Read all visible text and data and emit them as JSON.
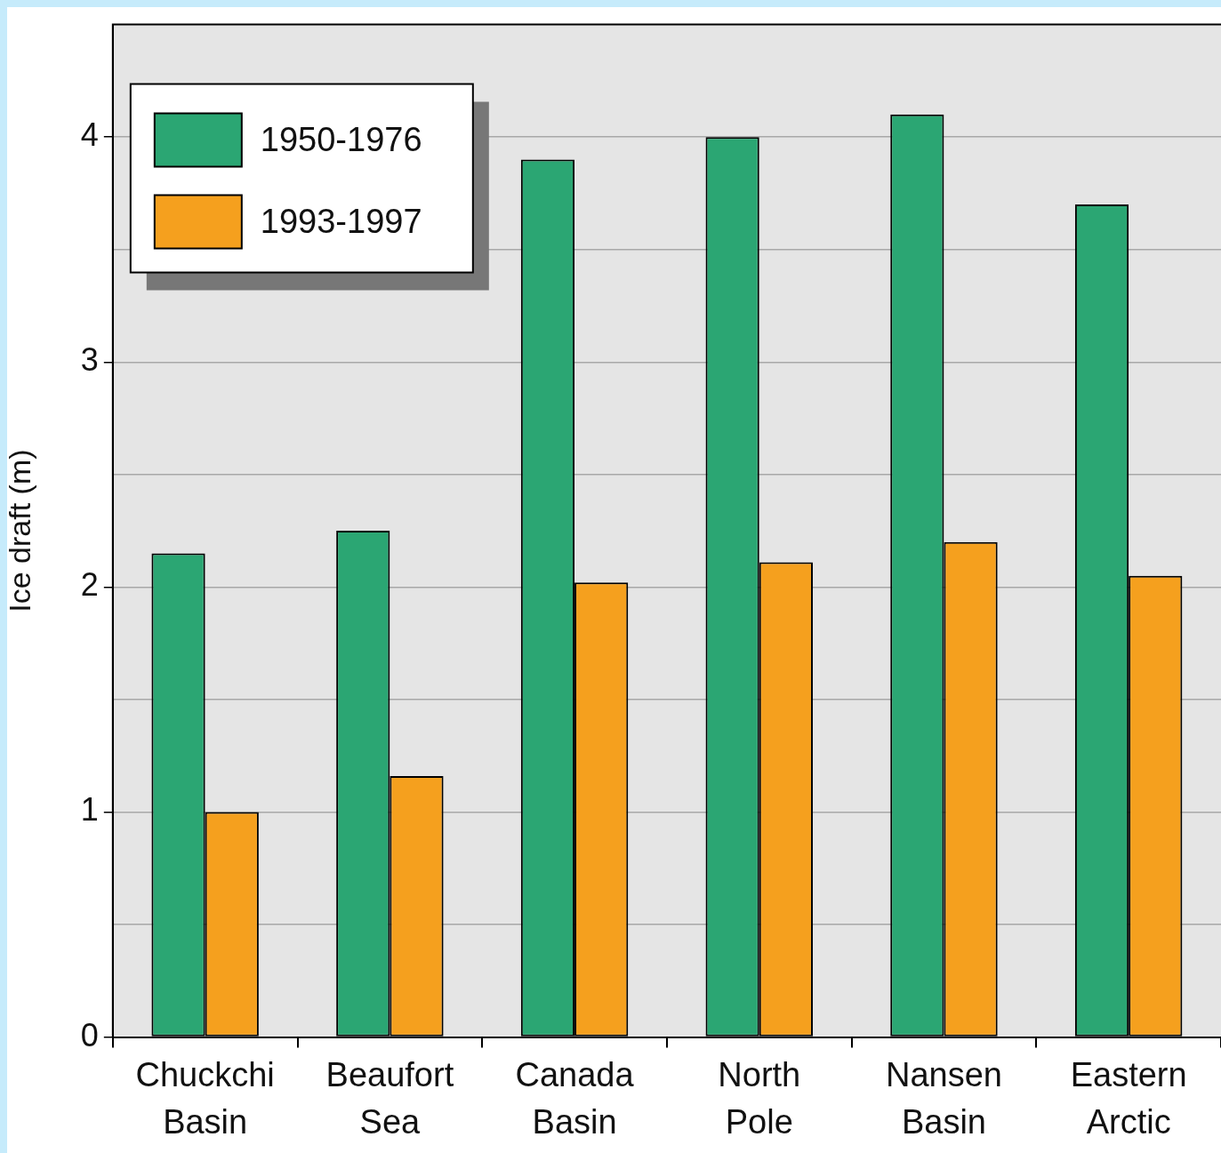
{
  "chart_data": {
    "type": "bar",
    "ylabel": "Ice draft (m)",
    "categories": [
      "Chuckchi Basin",
      "Beaufort Sea",
      "Canada Basin",
      "North Pole",
      "Nansen Basin",
      "Eastern Arctic"
    ],
    "series": [
      {
        "name": "1950-1976",
        "color": "#2ba673",
        "values": [
          2.15,
          2.25,
          3.9,
          4.0,
          4.1,
          3.7
        ]
      },
      {
        "name": "1993-1997",
        "color": "#f5a01e",
        "values": [
          1.0,
          1.16,
          2.02,
          2.11,
          2.2,
          2.05
        ]
      }
    ],
    "ylim": [
      0,
      4.5
    ],
    "yticks": [
      0,
      {
        "value": 0.5,
        "label": null
      },
      1,
      {
        "value": 1.5,
        "label": null
      },
      2,
      {
        "value": 2.5,
        "label": null
      },
      3,
      {
        "value": 3.5,
        "label": null
      },
      4
    ],
    "grid": "y",
    "legend": "top left"
  }
}
